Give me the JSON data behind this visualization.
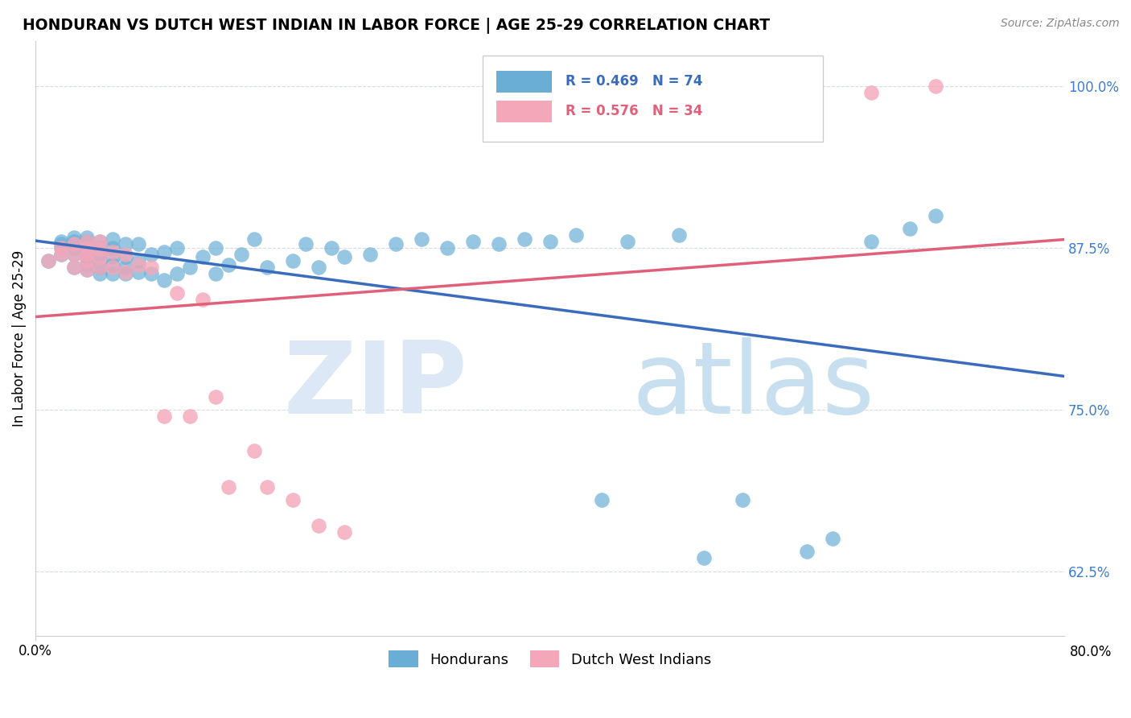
{
  "title": "HONDURAN VS DUTCH WEST INDIAN IN LABOR FORCE | AGE 25-29 CORRELATION CHART",
  "source": "Source: ZipAtlas.com",
  "ylabel": "In Labor Force | Age 25-29",
  "xmin": 0.0,
  "xmax": 0.8,
  "ymin": 0.575,
  "ymax": 1.035,
  "yticks": [
    0.625,
    0.75,
    0.875,
    1.0
  ],
  "ytick_labels": [
    "62.5%",
    "75.0%",
    "87.5%",
    "100.0%"
  ],
  "blue_R": 0.469,
  "blue_N": 74,
  "pink_R": 0.576,
  "pink_N": 34,
  "blue_color": "#6aaed6",
  "pink_color": "#f4a7b9",
  "blue_line_color": "#3a6bbd",
  "pink_line_color": "#e0607a",
  "legend_label_blue": "Hondurans",
  "legend_label_pink": "Dutch West Indians",
  "blue_x": [
    0.01,
    0.02,
    0.02,
    0.02,
    0.02,
    0.03,
    0.03,
    0.03,
    0.03,
    0.03,
    0.03,
    0.04,
    0.04,
    0.04,
    0.04,
    0.04,
    0.04,
    0.04,
    0.05,
    0.05,
    0.05,
    0.05,
    0.05,
    0.05,
    0.06,
    0.06,
    0.06,
    0.06,
    0.06,
    0.07,
    0.07,
    0.07,
    0.07,
    0.08,
    0.08,
    0.08,
    0.09,
    0.09,
    0.1,
    0.1,
    0.11,
    0.11,
    0.12,
    0.13,
    0.14,
    0.14,
    0.15,
    0.16,
    0.17,
    0.18,
    0.2,
    0.21,
    0.22,
    0.23,
    0.24,
    0.26,
    0.28,
    0.3,
    0.32,
    0.34,
    0.36,
    0.38,
    0.4,
    0.42,
    0.44,
    0.46,
    0.5,
    0.52,
    0.55,
    0.6,
    0.62,
    0.65,
    0.68,
    0.7
  ],
  "blue_y": [
    0.865,
    0.87,
    0.875,
    0.878,
    0.88,
    0.86,
    0.87,
    0.875,
    0.878,
    0.88,
    0.883,
    0.858,
    0.862,
    0.868,
    0.872,
    0.876,
    0.88,
    0.883,
    0.855,
    0.86,
    0.865,
    0.87,
    0.875,
    0.88,
    0.855,
    0.862,
    0.868,
    0.875,
    0.882,
    0.855,
    0.86,
    0.868,
    0.878,
    0.856,
    0.865,
    0.878,
    0.855,
    0.87,
    0.85,
    0.872,
    0.855,
    0.875,
    0.86,
    0.868,
    0.855,
    0.875,
    0.862,
    0.87,
    0.882,
    0.86,
    0.865,
    0.878,
    0.86,
    0.875,
    0.868,
    0.87,
    0.878,
    0.882,
    0.875,
    0.88,
    0.878,
    0.882,
    0.88,
    0.885,
    0.68,
    0.88,
    0.885,
    0.635,
    0.68,
    0.64,
    0.65,
    0.88,
    0.89,
    0.9
  ],
  "pink_x": [
    0.01,
    0.02,
    0.02,
    0.03,
    0.03,
    0.03,
    0.04,
    0.04,
    0.04,
    0.04,
    0.04,
    0.05,
    0.05,
    0.05,
    0.05,
    0.06,
    0.06,
    0.07,
    0.07,
    0.08,
    0.09,
    0.1,
    0.11,
    0.12,
    0.13,
    0.14,
    0.15,
    0.17,
    0.18,
    0.2,
    0.22,
    0.24,
    0.65,
    0.7
  ],
  "pink_y": [
    0.865,
    0.87,
    0.875,
    0.86,
    0.87,
    0.878,
    0.858,
    0.865,
    0.87,
    0.875,
    0.88,
    0.86,
    0.868,
    0.874,
    0.88,
    0.86,
    0.872,
    0.856,
    0.87,
    0.862,
    0.86,
    0.745,
    0.84,
    0.745,
    0.835,
    0.76,
    0.69,
    0.718,
    0.69,
    0.68,
    0.66,
    0.655,
    0.995,
    1.0
  ]
}
